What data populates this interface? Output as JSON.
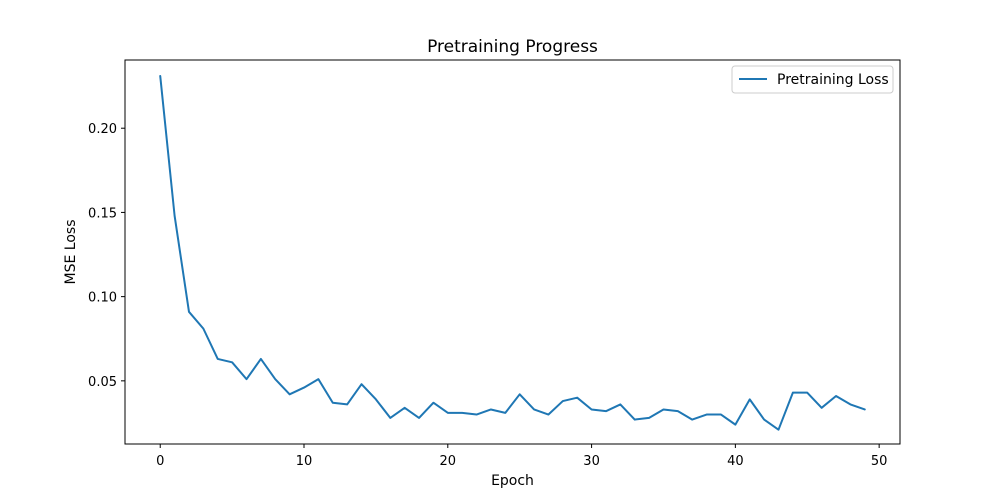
{
  "chart_data": {
    "type": "line",
    "title": "Pretraining Progress",
    "xlabel": "Epoch",
    "ylabel": "MSE Loss",
    "xlim": [
      -2.45,
      51.45
    ],
    "ylim": [
      0.0125,
      0.2405
    ],
    "xticks": [
      0,
      10,
      20,
      30,
      40,
      50
    ],
    "yticks": [
      0.05,
      0.1,
      0.15,
      0.2
    ],
    "xtick_labels": [
      "0",
      "10",
      "20",
      "30",
      "40",
      "50"
    ],
    "ytick_labels": [
      "0.05",
      "0.10",
      "0.15",
      "0.20"
    ],
    "grid": false,
    "legend_position": "top-right",
    "series": [
      {
        "name": "Pretraining Loss",
        "color": "#1f77b4",
        "x": [
          0,
          1,
          2,
          3,
          4,
          5,
          6,
          7,
          8,
          9,
          10,
          11,
          12,
          13,
          14,
          15,
          16,
          17,
          18,
          19,
          20,
          21,
          22,
          23,
          24,
          25,
          26,
          27,
          28,
          29,
          30,
          31,
          32,
          33,
          34,
          35,
          36,
          37,
          38,
          39,
          40,
          41,
          42,
          43,
          44,
          45,
          46,
          47,
          48,
          49
        ],
        "y": [
          0.231,
          0.148,
          0.091,
          0.081,
          0.063,
          0.061,
          0.051,
          0.063,
          0.051,
          0.042,
          0.046,
          0.051,
          0.037,
          0.036,
          0.048,
          0.039,
          0.028,
          0.034,
          0.028,
          0.037,
          0.031,
          0.031,
          0.03,
          0.033,
          0.031,
          0.042,
          0.033,
          0.03,
          0.038,
          0.04,
          0.033,
          0.032,
          0.036,
          0.027,
          0.028,
          0.033,
          0.032,
          0.027,
          0.03,
          0.03,
          0.024,
          0.039,
          0.027,
          0.021,
          0.043,
          0.043,
          0.034,
          0.041,
          0.036,
          0.033
        ]
      }
    ]
  }
}
